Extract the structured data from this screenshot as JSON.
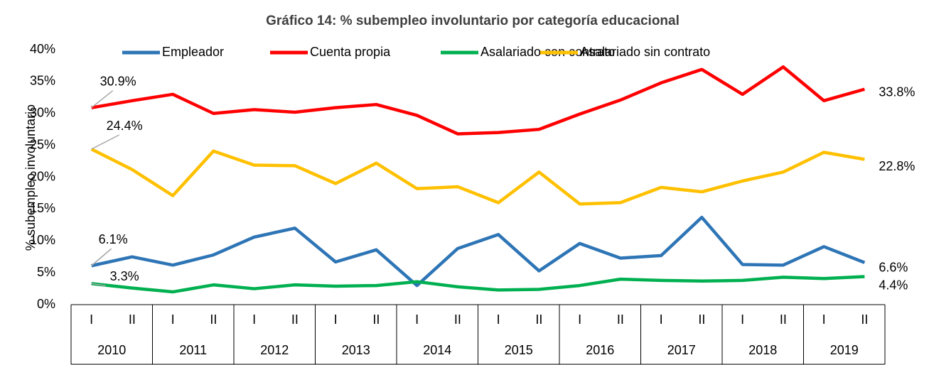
{
  "chart_data": {
    "type": "line",
    "title": "Gráfico 14: % subempleo involuntario por categoría educacional",
    "y_label": "% subempleo involuntario",
    "categories": [
      "I",
      "II",
      "I",
      "II",
      "I",
      "II",
      "I",
      "II",
      "I",
      "II",
      "I",
      "II",
      "I",
      "II",
      "I",
      "II",
      "I",
      "II",
      "I",
      "II"
    ],
    "years": [
      "2010",
      "2011",
      "2012",
      "2013",
      "2014",
      "2015",
      "2016",
      "2017",
      "2018",
      "2019"
    ],
    "ylim": [
      0,
      40
    ],
    "yticks": [
      {
        "value": 0,
        "label": "0%"
      },
      {
        "value": 5,
        "label": "5%"
      },
      {
        "value": 10,
        "label": "10%"
      },
      {
        "value": 15,
        "label": "15%"
      },
      {
        "value": 20,
        "label": "20%"
      },
      {
        "value": 25,
        "label": "25%"
      },
      {
        "value": 30,
        "label": "30%"
      },
      {
        "value": 35,
        "label": "35%"
      },
      {
        "value": 40,
        "label": "40%"
      }
    ],
    "grid": false,
    "legend": "top",
    "series": [
      {
        "name": "Empleador",
        "color": "#2e75b6",
        "label_color": "#2e75b6",
        "values": [
          6.1,
          7.5,
          6.2,
          7.8,
          10.6,
          12.0,
          6.7,
          8.6,
          3.0,
          8.8,
          11.0,
          5.3,
          9.6,
          7.3,
          7.7,
          13.7,
          6.3,
          6.2,
          9.1,
          6.6
        ],
        "value_labels": [
          "6.1%",
          null,
          null,
          null,
          null,
          null,
          null,
          null,
          null,
          null,
          null,
          null,
          null,
          null,
          null,
          null,
          null,
          null,
          null,
          "6.6%"
        ]
      },
      {
        "name": "Cuenta propia",
        "color": "#ff0000",
        "label_color": "#ff0000",
        "values": [
          30.9,
          32.0,
          33.0,
          30.0,
          30.6,
          30.2,
          30.9,
          31.4,
          29.7,
          26.8,
          27.0,
          27.5,
          29.9,
          32.1,
          34.8,
          36.9,
          33.0,
          37.3,
          32.0,
          33.8
        ],
        "value_labels": [
          "30.9%",
          null,
          null,
          null,
          null,
          null,
          null,
          null,
          null,
          null,
          null,
          null,
          null,
          null,
          null,
          null,
          null,
          null,
          null,
          "33.8%"
        ]
      },
      {
        "name": "Asalariado con contrato",
        "color": "#00b050",
        "label_color": "#00b050",
        "values": [
          3.3,
          2.6,
          2.0,
          3.1,
          2.5,
          3.1,
          2.9,
          3.0,
          3.6,
          2.8,
          2.3,
          2.4,
          3.0,
          4.0,
          3.8,
          3.7,
          3.8,
          4.3,
          4.1,
          4.4
        ],
        "value_labels": [
          "3.3%",
          null,
          null,
          null,
          null,
          null,
          null,
          null,
          null,
          null,
          null,
          null,
          null,
          null,
          null,
          null,
          null,
          null,
          null,
          "4.4%"
        ]
      },
      {
        "name": "Asalariado sin contrato",
        "color": "#ffc000",
        "label_color": "#bf9000",
        "values": [
          24.4,
          21.2,
          17.1,
          24.1,
          21.9,
          21.8,
          19.0,
          22.2,
          18.2,
          18.5,
          16.0,
          20.8,
          15.8,
          16.0,
          18.4,
          17.7,
          19.4,
          20.8,
          23.9,
          22.8
        ],
        "value_labels": [
          "24.4%",
          null,
          null,
          null,
          null,
          null,
          null,
          null,
          null,
          null,
          null,
          null,
          null,
          null,
          null,
          null,
          null,
          null,
          null,
          "22.8%"
        ]
      }
    ]
  }
}
